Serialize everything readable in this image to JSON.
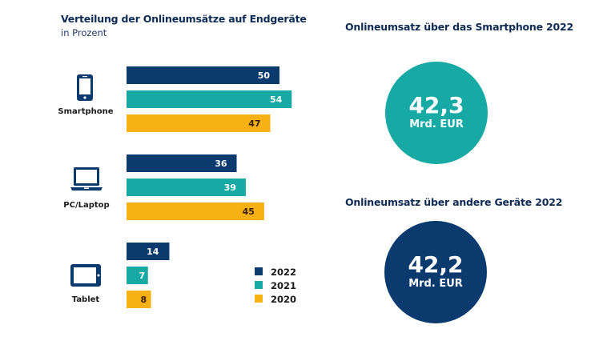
{
  "colors": {
    "y2022": "#0b3a6e",
    "y2021": "#17aaa5",
    "y2020": "#f7b114",
    "title": "#0d2b54",
    "label_light": "#ffffff",
    "label_dark": "#3a2000"
  },
  "chart_data": {
    "type": "bar",
    "orientation": "horizontal",
    "title": "Verteilung der Onlineumsätze auf Endgeräte",
    "subtitle": "in Prozent",
    "xlabel": "",
    "ylabel": "",
    "grid": false,
    "legend_position": "bottom-right",
    "categories": [
      "Smartphone",
      "PC/Laptop",
      "Tablet"
    ],
    "category_icons": [
      "smartphone-icon",
      "laptop-icon",
      "tablet-icon"
    ],
    "series": [
      {
        "name": "2022",
        "color": "#0b3a6e",
        "values": [
          50,
          36,
          14
        ]
      },
      {
        "name": "2021",
        "color": "#17aaa5",
        "values": [
          54,
          39,
          7
        ]
      },
      {
        "name": "2020",
        "color": "#f7b114",
        "values": [
          47,
          45,
          8
        ]
      }
    ],
    "xlim": [
      0,
      60
    ]
  },
  "kpis": [
    {
      "title": "Onlineumsatz über das Smartphone 2022",
      "value": "42,3",
      "unit": "Mrd. EUR",
      "color": "#17aaa5"
    },
    {
      "title": "Onlineumsatz über andere Geräte 2022",
      "value": "42,2",
      "unit": "Mrd. EUR",
      "color": "#0b3a6e"
    }
  ]
}
